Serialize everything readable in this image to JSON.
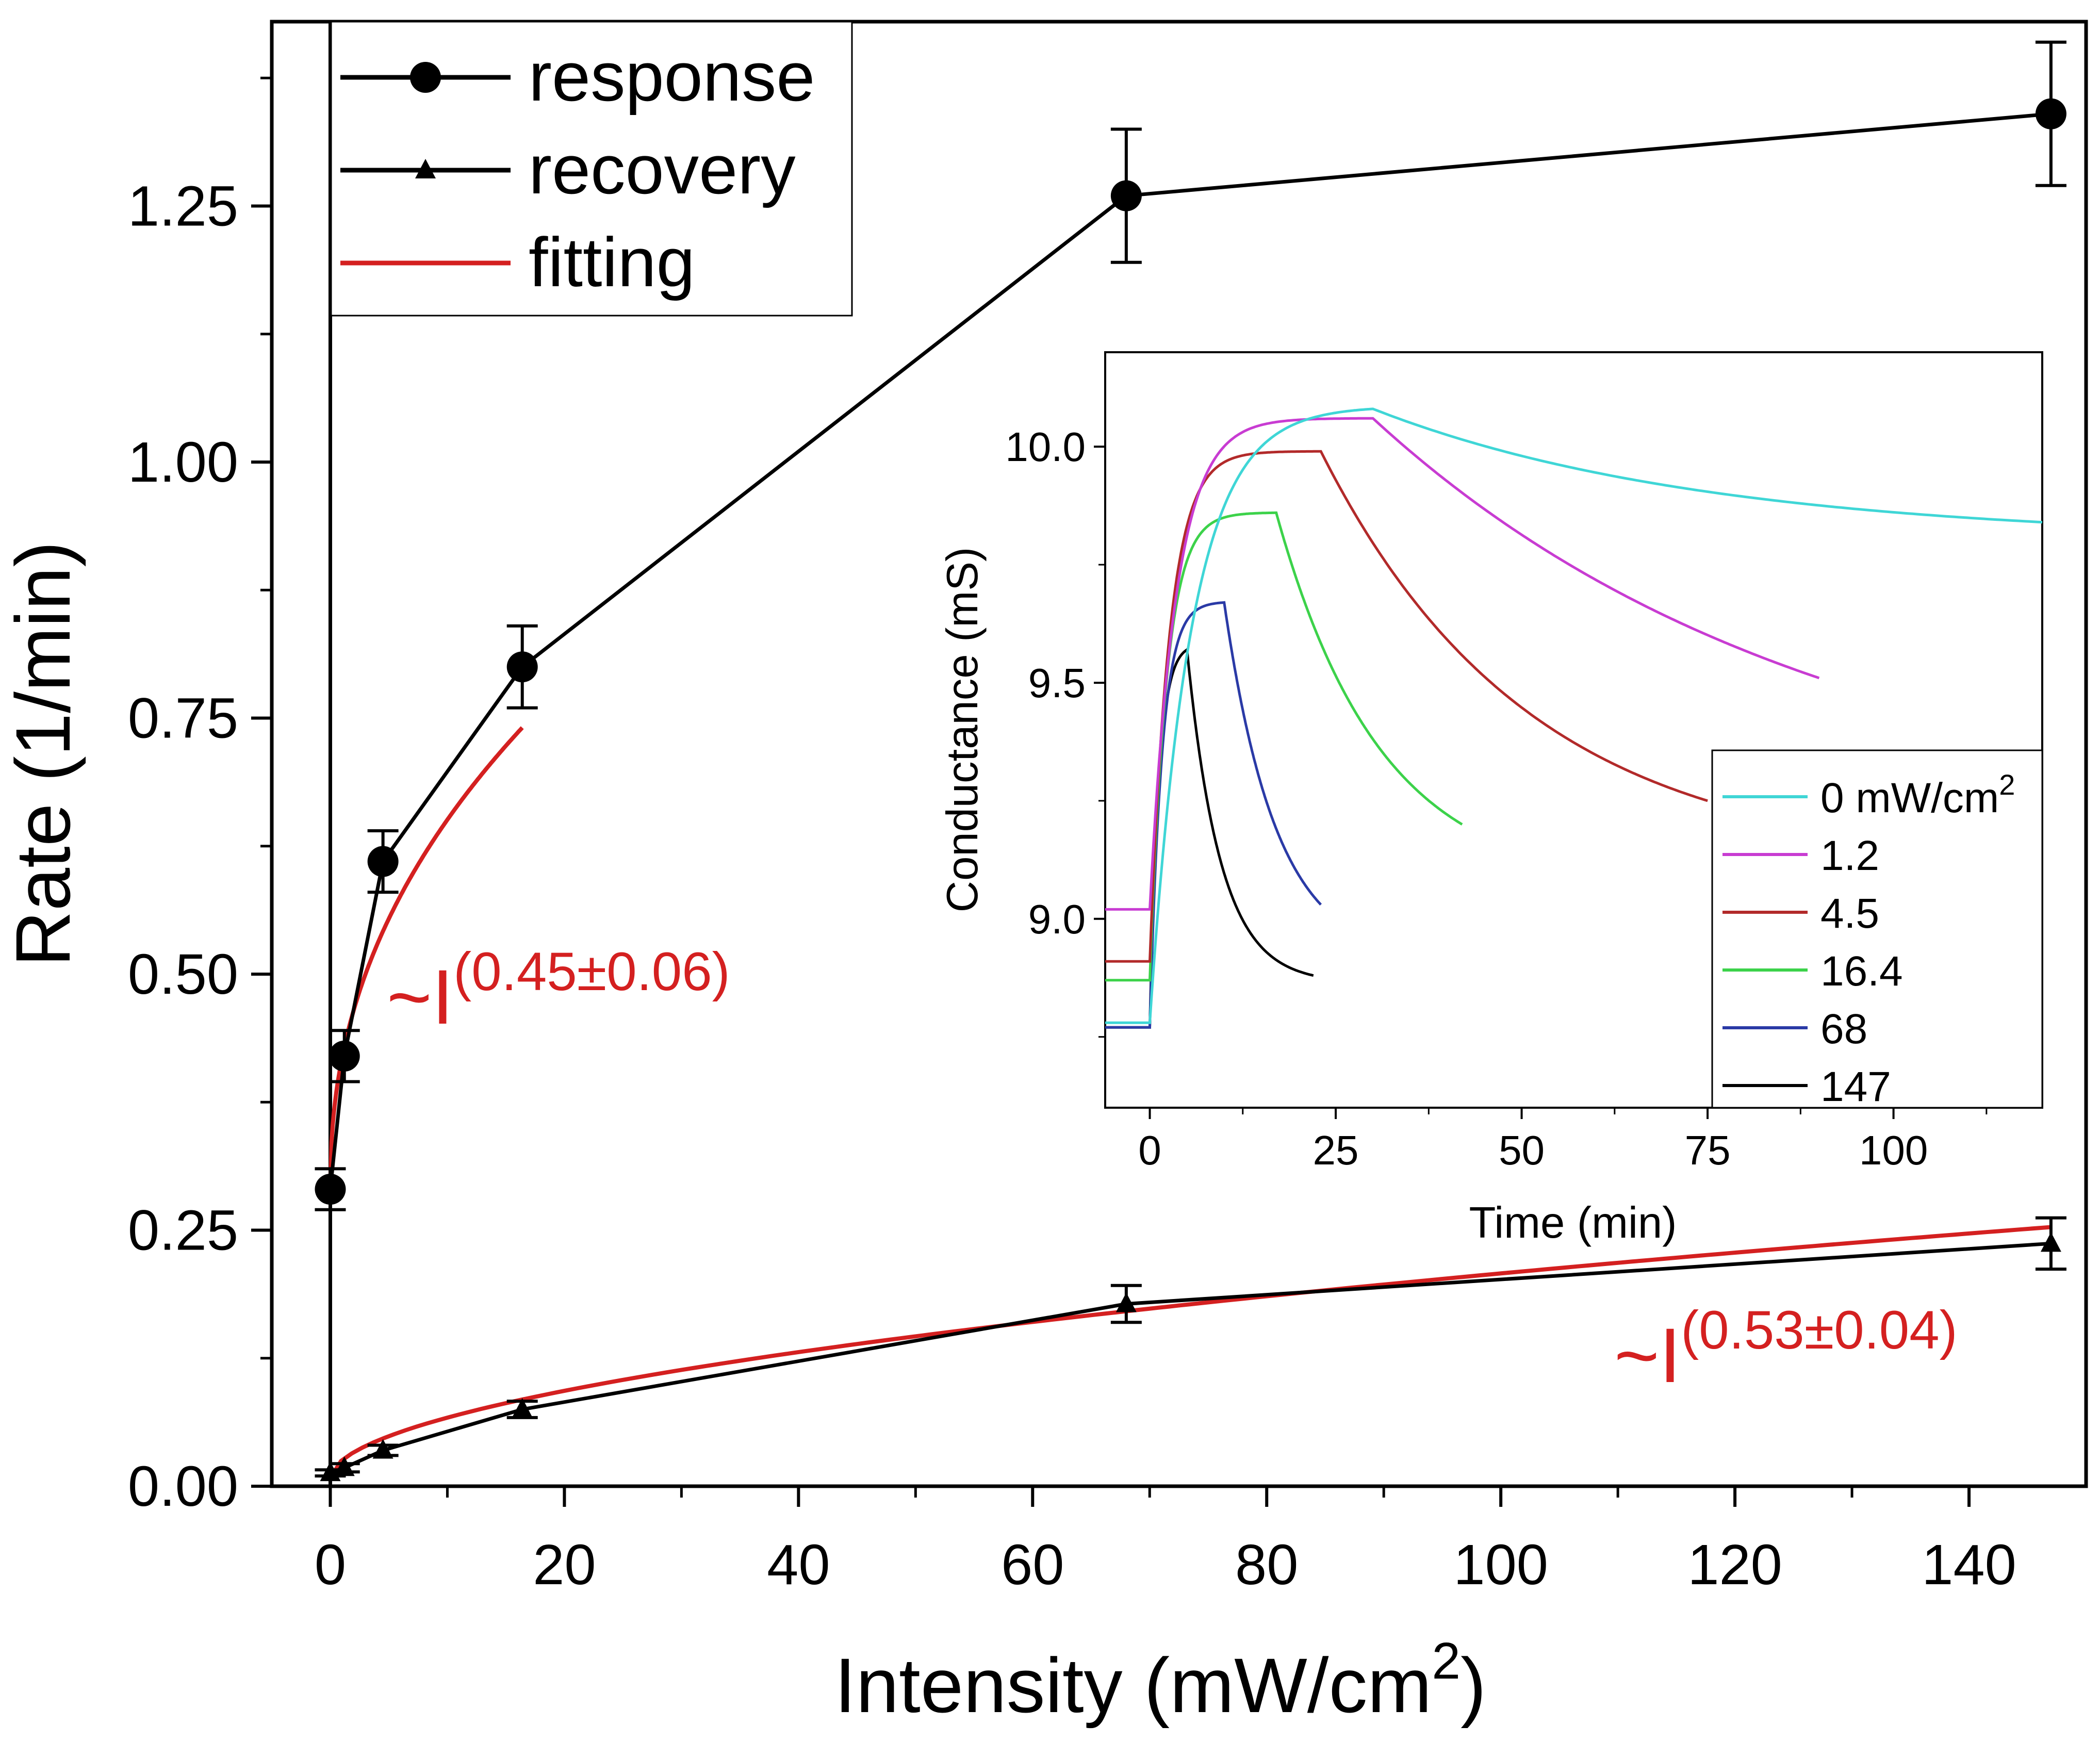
{
  "chart_data": [
    {
      "type": "line",
      "xlabel": "Intensity (mW/cm",
      "xlabel_sup": "2",
      "xlabel_end": ")",
      "ylabel": "Rate (1/min)",
      "xlim": [
        -5,
        150
      ],
      "ylim": [
        0,
        1.43
      ],
      "xticks": [
        0,
        20,
        40,
        60,
        80,
        100,
        120,
        140
      ],
      "yticks": [
        0.0,
        0.25,
        0.5,
        0.75,
        1.0,
        1.25
      ],
      "xtick_labels": [
        "0",
        "20",
        "40",
        "60",
        "80",
        "100",
        "120",
        "140"
      ],
      "ytick_labels": [
        "0.00",
        "0.25",
        "0.50",
        "0.75",
        "1.00",
        "1.25"
      ],
      "vertical_line_x": 0,
      "legend_position": "top-left",
      "series": [
        {
          "name": "response",
          "marker": "circle",
          "color": "#000000",
          "x": [
            0,
            1.2,
            4.5,
            16.4,
            68,
            147
          ],
          "y": [
            0.29,
            0.42,
            0.61,
            0.8,
            1.26,
            1.34
          ],
          "err": [
            0.02,
            0.025,
            0.03,
            0.04,
            0.065,
            0.07
          ]
        },
        {
          "name": "recovery",
          "marker": "triangle",
          "color": "#000000",
          "x": [
            0,
            1.2,
            4.5,
            16.4,
            68,
            147
          ],
          "y": [
            0.013,
            0.018,
            0.035,
            0.075,
            0.178,
            0.237
          ],
          "err": [
            0.003,
            0.004,
            0.005,
            0.008,
            0.018,
            0.025
          ]
        },
        {
          "name": "fitting",
          "marker": "none",
          "color": "#d42020",
          "note_curves": "power-law fits shown over each data set"
        }
      ],
      "fit_response": {
        "a": 0.32,
        "b": 0.0,
        "exponent": 0.45,
        "x_range": [
          0,
          16.4
        ]
      },
      "fit_recovery": {
        "a": 0.018,
        "exponent": 0.53,
        "x_range": [
          0,
          147
        ]
      },
      "annotations": [
        {
          "prefix": "~I",
          "exponent": "(0.45±0.06)",
          "color": "#d42020"
        },
        {
          "prefix": "~I",
          "exponent": "(0.53±0.04)",
          "color": "#d42020"
        }
      ]
    },
    {
      "type": "line",
      "role": "inset",
      "xlabel": "Time (min)",
      "ylabel": "Conductance (mS)",
      "xlim": [
        -6,
        120
      ],
      "ylim": [
        8.6,
        10.2
      ],
      "xticks": [
        0,
        25,
        50,
        75,
        100
      ],
      "yticks": [
        9.0,
        9.5,
        10.0
      ],
      "xtick_labels": [
        "0",
        "25",
        "50",
        "75",
        "100"
      ],
      "ytick_labels": [
        "9.0",
        "9.5",
        "10.0"
      ],
      "legend_position": "bottom-right",
      "series": [
        {
          "name": "0 mW/cm",
          "name_sup": "2",
          "color": "#3fd6d6",
          "baseline": 8.78,
          "t_on": 0,
          "t_off": 30,
          "peak": 10.08,
          "tau_rise": 5.5,
          "end": 9.84,
          "t_end": 120,
          "tau_fall": 45
        },
        {
          "name": "1.2",
          "color": "#c83cd2",
          "baseline": 9.02,
          "t_on": 0,
          "t_off": 30,
          "peak": 10.06,
          "tau_rise": 3.5,
          "end": 9.51,
          "t_end": 90,
          "tau_fall": 60
        },
        {
          "name": "4.5",
          "color": "#b22a2a",
          "baseline": 8.91,
          "t_on": 0,
          "t_off": 23,
          "peak": 9.99,
          "tau_rise": 2.6,
          "end": 9.25,
          "t_end": 75,
          "tau_fall": 28
        },
        {
          "name": "16.4",
          "color": "#3cd24a",
          "baseline": 8.87,
          "t_on": 0,
          "t_off": 17,
          "peak": 9.86,
          "tau_rise": 2.2,
          "end": 9.2,
          "t_end": 42,
          "tau_fall": 14
        },
        {
          "name": "68",
          "color": "#2a3aa6",
          "baseline": 8.77,
          "t_on": 0,
          "t_off": 10,
          "peak": 9.67,
          "tau_rise": 1.6,
          "end": 9.03,
          "t_end": 23,
          "tau_fall": 7
        },
        {
          "name": "147",
          "color": "#000000",
          "baseline": 8.77,
          "t_on": 0,
          "t_off": 5,
          "peak": 9.57,
          "tau_rise": 1.2,
          "end": 8.88,
          "t_end": 22,
          "tau_fall": 4.5
        }
      ]
    }
  ]
}
